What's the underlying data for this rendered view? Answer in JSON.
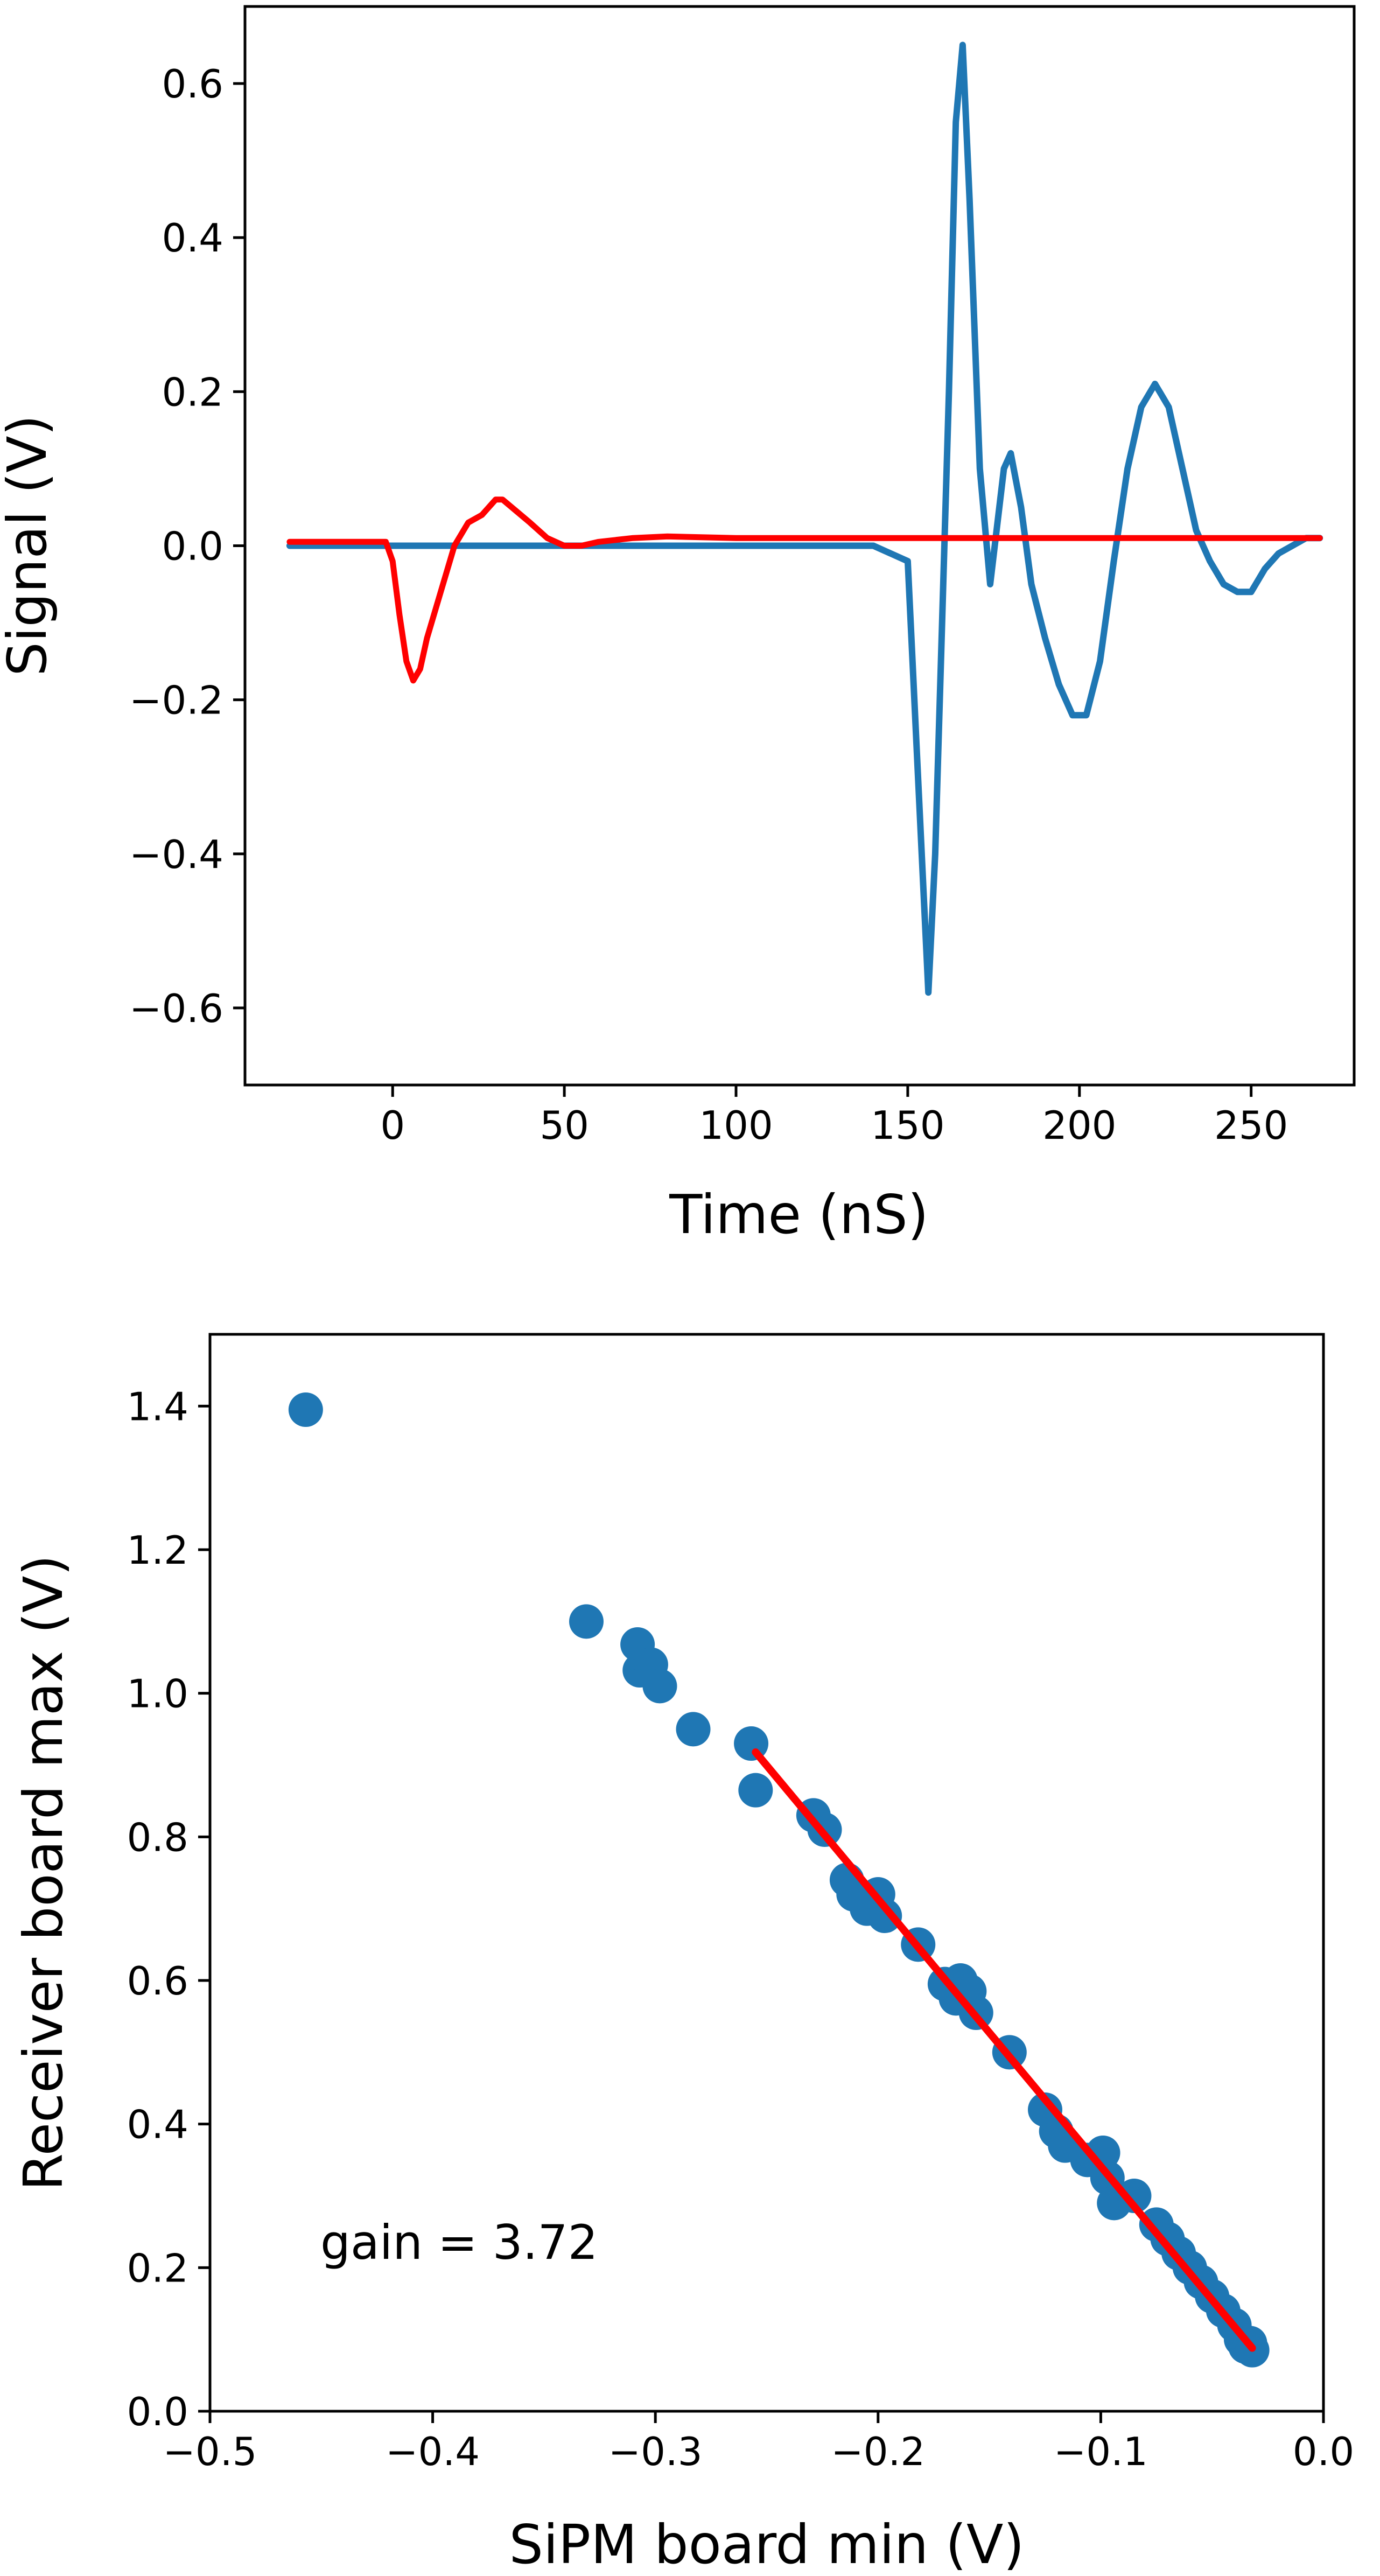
{
  "chart_data": [
    {
      "type": "line",
      "title": "",
      "xlabel": "Time (nS)",
      "ylabel": "Signal (V)",
      "xlim": [
        -43,
        280
      ],
      "ylim": [
        -0.7,
        0.7
      ],
      "xticks": [
        0,
        50,
        100,
        150,
        200,
        250
      ],
      "xtick_labels": [
        "0",
        "50",
        "100",
        "150",
        "200",
        "250"
      ],
      "yticks": [
        -0.6,
        -0.4,
        -0.2,
        0.0,
        0.2,
        0.4,
        0.6
      ],
      "ytick_labels": [
        "−0.6",
        "−0.4",
        "−0.2",
        "0.0",
        "0.2",
        "0.4",
        "0.6"
      ],
      "grid": false,
      "series": [
        {
          "color": "#1f77b4",
          "x": [
            -30,
            -10,
            0,
            20,
            40,
            60,
            80,
            100,
            120,
            140,
            150,
            153,
            156,
            158,
            160,
            162,
            164,
            166,
            168,
            171,
            174,
            178,
            180,
            183,
            186,
            190,
            194,
            198,
            202,
            206,
            210,
            214,
            218,
            222,
            226,
            230,
            234,
            238,
            242,
            246,
            250,
            254,
            258,
            262,
            266,
            270
          ],
          "y": [
            0.0,
            0.0,
            0.0,
            0.0,
            0.0,
            0.0,
            0.0,
            0.0,
            0.0,
            0.0,
            -0.02,
            -0.3,
            -0.58,
            -0.4,
            -0.1,
            0.2,
            0.55,
            0.65,
            0.45,
            0.1,
            -0.05,
            0.1,
            0.12,
            0.05,
            -0.05,
            -0.12,
            -0.18,
            -0.22,
            -0.22,
            -0.15,
            -0.02,
            0.1,
            0.18,
            0.21,
            0.18,
            0.1,
            0.02,
            -0.02,
            -0.05,
            -0.06,
            -0.06,
            -0.03,
            -0.01,
            0.0,
            0.01,
            0.01
          ]
        },
        {
          "color": "#ff0000",
          "x": [
            -30,
            -10,
            -2,
            0,
            2,
            4,
            6,
            8,
            10,
            14,
            18,
            22,
            26,
            30,
            32,
            36,
            40,
            45,
            50,
            55,
            60,
            70,
            80,
            100,
            130,
            160,
            200,
            240,
            270
          ],
          "y": [
            0.005,
            0.005,
            0.005,
            -0.02,
            -0.09,
            -0.15,
            -0.175,
            -0.16,
            -0.12,
            -0.06,
            0.0,
            0.03,
            0.04,
            0.06,
            0.06,
            0.045,
            0.03,
            0.01,
            0.0,
            0.0,
            0.005,
            0.01,
            0.012,
            0.01,
            0.01,
            0.01,
            0.01,
            0.01,
            0.01
          ]
        }
      ]
    },
    {
      "type": "scatter",
      "title": "",
      "xlabel": "SiPM board min (V)",
      "ylabel": "Receiver board max (V)",
      "xlim": [
        -0.5,
        0.0
      ],
      "ylim": [
        0.0,
        1.5
      ],
      "xticks": [
        -0.5,
        -0.4,
        -0.3,
        -0.2,
        -0.1,
        0.0
      ],
      "xtick_labels": [
        "−0.5",
        "−0.4",
        "−0.3",
        "−0.2",
        "−0.1",
        "0.0"
      ],
      "yticks": [
        0.0,
        0.2,
        0.4,
        0.6,
        0.8,
        1.0,
        1.2,
        1.4
      ],
      "ytick_labels": [
        "0.0",
        "0.2",
        "0.4",
        "0.6",
        "0.8",
        "1.0",
        "1.2",
        "1.4"
      ],
      "grid": false,
      "annotation": "gain = 3.72",
      "points": {
        "color": "#1f77b4",
        "x": [
          -0.457,
          -0.331,
          -0.308,
          -0.307,
          -0.302,
          -0.298,
          -0.283,
          -0.257,
          -0.255,
          -0.229,
          -0.224,
          -0.214,
          -0.211,
          -0.205,
          -0.2,
          -0.197,
          -0.182,
          -0.17,
          -0.165,
          -0.163,
          -0.159,
          -0.156,
          -0.141,
          -0.125,
          -0.12,
          -0.116,
          -0.106,
          -0.099,
          -0.097,
          -0.094,
          -0.085,
          -0.075,
          -0.07,
          -0.065,
          -0.06,
          -0.055,
          -0.05,
          -0.045,
          -0.04,
          -0.037,
          -0.035,
          -0.033,
          -0.032
        ],
        "y": [
          1.395,
          1.1,
          1.068,
          1.032,
          1.04,
          1.01,
          0.95,
          0.93,
          0.865,
          0.83,
          0.81,
          0.74,
          0.72,
          0.7,
          0.72,
          0.69,
          0.65,
          0.595,
          0.575,
          0.6,
          0.585,
          0.555,
          0.5,
          0.42,
          0.39,
          0.37,
          0.35,
          0.36,
          0.325,
          0.29,
          0.3,
          0.26,
          0.24,
          0.22,
          0.2,
          0.18,
          0.16,
          0.14,
          0.12,
          0.1,
          0.09,
          0.095,
          0.085
        ]
      },
      "fit_line": {
        "color": "#ff0000",
        "x": [
          -0.255,
          -0.032
        ],
        "y": [
          0.918,
          0.088
        ]
      }
    }
  ]
}
